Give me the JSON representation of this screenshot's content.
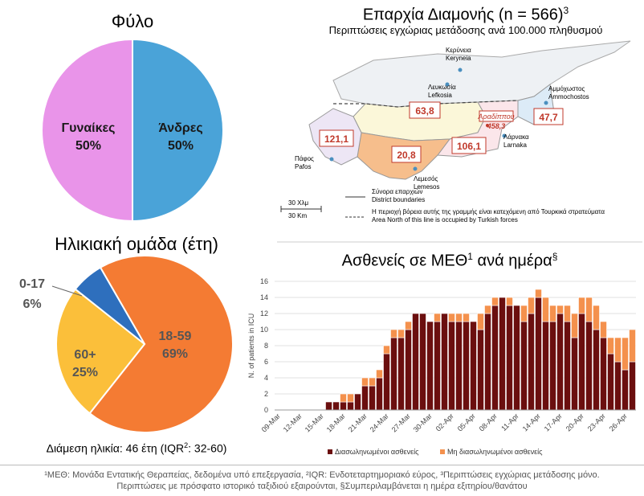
{
  "gender": {
    "title": "Φύλο",
    "chart_data": {
      "type": "pie",
      "title": "Φύλο",
      "slices": [
        {
          "label": "Άνδρες",
          "value": 50,
          "pct_label": "50%",
          "color": "#4aa3d8"
        },
        {
          "label": "Γυναίκες",
          "value": 50,
          "pct_label": "50%",
          "color": "#e994e9"
        }
      ]
    }
  },
  "age": {
    "title": "Ηλικιακή ομάδα (έτη)",
    "median_text": "Διάμεση ηλικία: 46 έτη (IQR",
    "median_sup": "2",
    "median_rest": ": 32-60)",
    "chart_data": {
      "type": "pie",
      "title": "Ηλικιακή ομάδα (έτη)",
      "slices": [
        {
          "label": "18-59",
          "value": 69,
          "pct_label": "69%",
          "color": "#f47b33"
        },
        {
          "label": "60+",
          "value": 25,
          "pct_label": "25%",
          "color": "#fbbf3a"
        },
        {
          "label": "0-17",
          "value": 6,
          "pct_label": "6%",
          "color": "#2e6fbd"
        }
      ]
    }
  },
  "map": {
    "title": "Επαρχία Διαμονής (n = 566)",
    "title_sup": "3",
    "subtitle": "Περιπτώσεις εγχώριας μετάδοσης ανά 100.000 πληθυσμού",
    "districts": [
      {
        "gr": "Λευκωσία",
        "en": "Lefkosia",
        "value": "63,8"
      },
      {
        "gr": "Λεμεσός",
        "en": "Lemesos",
        "value": "20,8"
      },
      {
        "gr": "Λάρνακα",
        "en": "Larnaka",
        "value": "106,1"
      },
      {
        "gr": "Πάφος",
        "en": "Pafos",
        "value": "121,1"
      },
      {
        "gr": "Αμμόχωστος",
        "en": "Ammochostos",
        "value": "47,7"
      },
      {
        "gr": "Κερύνεια",
        "en": "Keryneia",
        "value": ""
      }
    ],
    "cluster_label": "Αραδίππου",
    "cluster_value": "458,3",
    "legend": {
      "boundary_gr": "Σύνορα επαρχιών",
      "boundary_en": "District boundaries",
      "occupied_gr": "Η περιοχή βόρεια αυτής της γραμμής είναι κατεχόμενη από Τουρκικά στρατεύματα",
      "occupied_en": "Area North of this line is occupied by Turkish forces",
      "scale_gr": "30 Χλμ",
      "scale_en": "30 Km"
    },
    "colors": {
      "nicosia": "#fbf7d9",
      "limassol": "#f6be8c",
      "larnaca": "#fbe6ea",
      "paphos": "#ede6f5",
      "north": "#eef1f4",
      "famagusta": "#dcebf7"
    }
  },
  "icu": {
    "title": "Ασθενείς σε ΜΕΘ",
    "title_sup1": "1",
    "title_mid": " ανά ημέρα",
    "title_sup2": "§",
    "chart_data": {
      "type": "bar",
      "stacked": true,
      "title": "Ασθενείς σε ΜΕΘ ανά ημέρα",
      "ylabel": "N. of patients in ICU",
      "ylim": [
        0,
        16
      ],
      "yticks": [
        0,
        2,
        4,
        6,
        8,
        10,
        12,
        14,
        16
      ],
      "x_tick_labels": [
        "09-Mar",
        "12-Mar",
        "15-Mar",
        "18-Mar",
        "21-Mar",
        "24-Mar",
        "27-Mar",
        "30-Mar",
        "02-Apr",
        "05-Apr",
        "08-Apr",
        "11-Apr",
        "14-Apr",
        "17-Apr",
        "20-Apr",
        "23-Apr",
        "26-Apr"
      ],
      "categories": [
        "09-Mar",
        "10-Mar",
        "11-Mar",
        "12-Mar",
        "13-Mar",
        "14-Mar",
        "15-Mar",
        "16-Mar",
        "17-Mar",
        "18-Mar",
        "19-Mar",
        "20-Mar",
        "21-Mar",
        "22-Mar",
        "23-Mar",
        "24-Mar",
        "25-Mar",
        "26-Mar",
        "27-Mar",
        "28-Mar",
        "29-Mar",
        "30-Mar",
        "31-Mar",
        "01-Apr",
        "02-Apr",
        "03-Apr",
        "04-Apr",
        "05-Apr",
        "06-Apr",
        "07-Apr",
        "08-Apr",
        "09-Apr",
        "10-Apr",
        "11-Apr",
        "12-Apr",
        "13-Apr",
        "14-Apr",
        "15-Apr",
        "16-Apr",
        "17-Apr",
        "18-Apr",
        "19-Apr",
        "20-Apr",
        "21-Apr",
        "22-Apr",
        "23-Apr",
        "24-Apr",
        "25-Apr",
        "26-Apr",
        "27-Apr"
      ],
      "series": [
        {
          "name": "Διασωληνωμένοι ασθενείς",
          "color": "#6b0f0f",
          "values": [
            0,
            0,
            0,
            0,
            0,
            0,
            0,
            1,
            1,
            1,
            1,
            2,
            3,
            3,
            4,
            7,
            9,
            9,
            10,
            12,
            12,
            11,
            11,
            12,
            11,
            11,
            11,
            11,
            10,
            12,
            13,
            14,
            13,
            13,
            11,
            12,
            14,
            11,
            11,
            12,
            11,
            9,
            12,
            11,
            10,
            9,
            7,
            6,
            5,
            6
          ]
        },
        {
          "name": "Μη διασωληνωμένοι ασθενείς",
          "color": "#f4914d",
          "values": [
            0,
            0,
            0,
            0,
            0,
            0,
            0,
            0,
            0,
            1,
            1,
            0,
            1,
            1,
            1,
            1,
            1,
            1,
            1,
            0,
            0,
            0,
            1,
            0,
            1,
            1,
            1,
            0,
            2,
            1,
            1,
            0,
            1,
            0,
            2,
            2,
            1,
            3,
            2,
            1,
            2,
            3,
            2,
            3,
            3,
            2,
            2,
            3,
            4,
            4
          ]
        }
      ],
      "legend_position": "bottom"
    }
  },
  "footnote": {
    "line1": "¹ΜΕΘ: Μονάδα Εντατικής Θεραπείας, δεδομένα υπό επεξεργασία, ²IQR: Ενδοτεταρτημοριακό εύρος, ³Περιπτώσεις εγχώριας μετάδοσης μόνο.",
    "line2": "Περιπτώσεις με πρόσφατο ιστορικό ταξιδιού εξαιρούνται, §Συμπεριλαμβάνεται η ημέρα εξιτηρίου/θανάτου"
  }
}
